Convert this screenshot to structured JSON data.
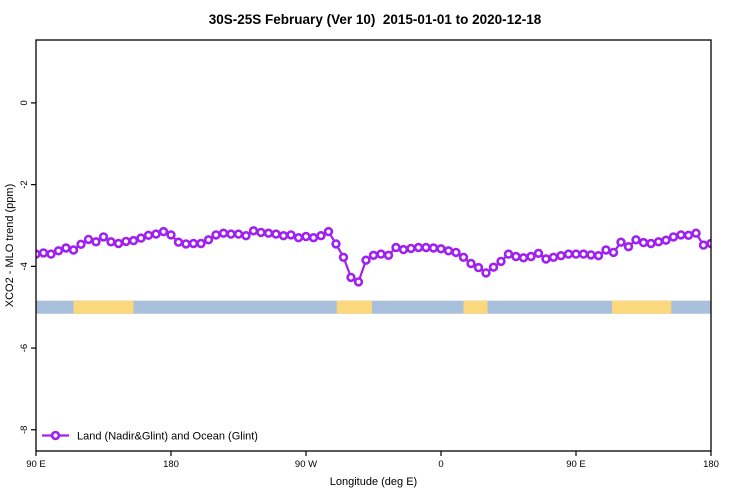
{
  "title": "30S-25S February (Ver 10)  2015-01-01 to 2020-12-18",
  "colors": {
    "line": "#A020F0",
    "marker_fill": "#FFFFFF",
    "ocean_strip": "#A9C0DC",
    "land_strip": "#FBD87C",
    "axis": "#000000",
    "background": "#FFFFFF"
  },
  "chart_data": {
    "type": "line",
    "title": "30S-25S February (Ver 10)  2015-01-01 to 2020-12-18",
    "xlabel": "Longitude (deg E)",
    "ylabel": "XCO2 - MLO trend (ppm)",
    "x_range_deg": [
      90,
      540
    ],
    "x_start_deg": 90,
    "x_step_deg": 5,
    "ylim": [
      -8.52,
      1.54
    ],
    "grid": false,
    "x_ticks": [
      {
        "deg": 90,
        "label": "90 E"
      },
      {
        "deg": 180,
        "label": "180"
      },
      {
        "deg": 270,
        "label": "90 W"
      },
      {
        "deg": 360,
        "label": "0"
      },
      {
        "deg": 450,
        "label": "90 E"
      },
      {
        "deg": 540,
        "label": "180"
      }
    ],
    "y_ticks": [
      {
        "value": 0,
        "label": "0"
      },
      {
        "value": -2,
        "label": "-2"
      },
      {
        "value": -4,
        "label": "-4"
      },
      {
        "value": -6,
        "label": "-6"
      },
      {
        "value": -8,
        "label": "-8"
      }
    ],
    "series": [
      {
        "name": "Land (Nadir&Glint) and Ocean (Glint)",
        "marker": "open-circle",
        "color": "#A020F0",
        "values": [
          -3.7,
          -3.67,
          -3.7,
          -3.62,
          -3.55,
          -3.6,
          -3.46,
          -3.34,
          -3.4,
          -3.28,
          -3.4,
          -3.44,
          -3.39,
          -3.37,
          -3.31,
          -3.24,
          -3.21,
          -3.15,
          -3.23,
          -3.41,
          -3.45,
          -3.44,
          -3.44,
          -3.35,
          -3.23,
          -3.19,
          -3.21,
          -3.21,
          -3.25,
          -3.13,
          -3.17,
          -3.19,
          -3.21,
          -3.25,
          -3.23,
          -3.3,
          -3.27,
          -3.3,
          -3.25,
          -3.15,
          -3.45,
          -3.78,
          -4.27,
          -4.38,
          -3.85,
          -3.73,
          -3.7,
          -3.73,
          -3.54,
          -3.59,
          -3.56,
          -3.54,
          -3.54,
          -3.55,
          -3.57,
          -3.62,
          -3.66,
          -3.78,
          -3.93,
          -4.03,
          -4.16,
          -4.02,
          -3.88,
          -3.7,
          -3.76,
          -3.79,
          -3.76,
          -3.68,
          -3.82,
          -3.78,
          -3.74,
          -3.7,
          -3.7,
          -3.7,
          -3.72,
          -3.74,
          -3.6,
          -3.66,
          -3.41,
          -3.52,
          -3.35,
          -3.42,
          -3.44,
          -3.4,
          -3.36,
          -3.28,
          -3.23,
          -3.24,
          -3.19,
          -3.48,
          -3.44,
          -3.45,
          -3.47
        ]
      }
    ],
    "surface_strip": {
      "description": "land/ocean indicator band",
      "y_center": -5.0,
      "y_halfwidth": 0.16,
      "ocean_color": "#A9C0DC",
      "land_color": "#FBD87C",
      "land_segments_deg": [
        [
          115,
          155
        ],
        [
          290.5,
          314
        ],
        [
          375,
          391
        ],
        [
          474,
          513.5
        ]
      ]
    },
    "legend": {
      "label": "Land (Nadir&Glint) and Ocean (Glint)",
      "position": "bottom-left"
    }
  }
}
